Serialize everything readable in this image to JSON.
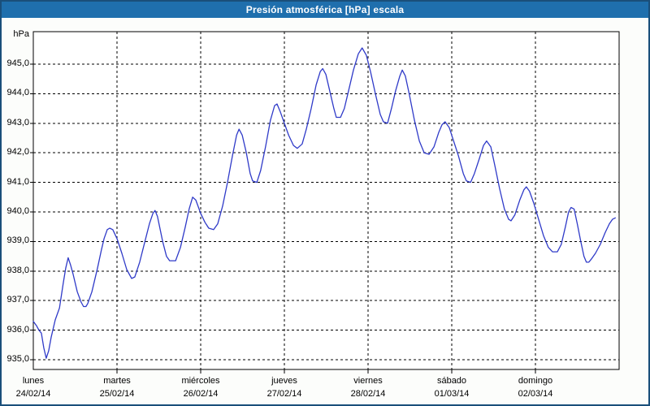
{
  "window": {
    "title": "Presión atmosférica [hPa] escala"
  },
  "colors": {
    "titlebar_bg": "#1f6fad",
    "titlebar_text": "#ffffff",
    "window_border": "#1a4f7a",
    "plot_border": "#000000",
    "grid": "#000000",
    "line": "#2f3ac8",
    "plot_background": "#ffffff"
  },
  "chart_data": {
    "type": "line",
    "title": "Presión atmosférica [hPa] escala",
    "legend_position": "none",
    "grid": "dashed",
    "y_axis": {
      "unit": "hPa",
      "min": 935.0,
      "max": 945.0,
      "tick_step": 1.0,
      "tick_labels": [
        "945,0",
        "944,0",
        "943,0",
        "942,0",
        "941,0",
        "940,0",
        "939,0",
        "938,0",
        "937,0",
        "936,0",
        "935,0"
      ],
      "tick_values": [
        945,
        944,
        943,
        942,
        941,
        940,
        939,
        938,
        937,
        936,
        935
      ]
    },
    "x_axis": {
      "hours_span": 168,
      "days": [
        {
          "name": "lunes",
          "date": "24/02/14"
        },
        {
          "name": "martes",
          "date": "25/02/14"
        },
        {
          "name": "miércoles",
          "date": "26/02/14"
        },
        {
          "name": "jueves",
          "date": "27/02/14"
        },
        {
          "name": "viernes",
          "date": "28/02/14"
        },
        {
          "name": "sábado",
          "date": "01/03/14"
        },
        {
          "name": "domingo",
          "date": "02/03/14"
        }
      ]
    },
    "series": [
      {
        "name": "presión atmosférica",
        "color": "#2f3ac8",
        "points_hours_hpa": [
          [
            0,
            936.3
          ],
          [
            0.9,
            936.15
          ],
          [
            1.6,
            936.0
          ],
          [
            2.3,
            935.9
          ],
          [
            3.0,
            935.4
          ],
          [
            3.7,
            935.05
          ],
          [
            4.4,
            935.3
          ],
          [
            5.1,
            935.75
          ],
          [
            6.3,
            936.35
          ],
          [
            7.5,
            936.75
          ],
          [
            8.6,
            937.6
          ],
          [
            9.3,
            938.1
          ],
          [
            10.0,
            938.45
          ],
          [
            10.7,
            938.2
          ],
          [
            11.4,
            937.9
          ],
          [
            12.6,
            937.3
          ],
          [
            13.7,
            936.95
          ],
          [
            14.4,
            936.8
          ],
          [
            15.1,
            936.8
          ],
          [
            15.6,
            936.9
          ],
          [
            16.8,
            937.3
          ],
          [
            18.4,
            938.1
          ],
          [
            19.5,
            938.7
          ],
          [
            20.3,
            939.1
          ],
          [
            21.2,
            939.4
          ],
          [
            21.9,
            939.45
          ],
          [
            22.8,
            939.4
          ],
          [
            24.0,
            939.1
          ],
          [
            25.4,
            938.6
          ],
          [
            26.8,
            938.05
          ],
          [
            28.2,
            937.75
          ],
          [
            29.1,
            937.8
          ],
          [
            30.5,
            938.3
          ],
          [
            31.9,
            938.95
          ],
          [
            33.3,
            939.6
          ],
          [
            34.3,
            939.95
          ],
          [
            34.9,
            940.05
          ],
          [
            35.6,
            939.85
          ],
          [
            37.1,
            939.0
          ],
          [
            38.2,
            938.5
          ],
          [
            39.1,
            938.35
          ],
          [
            40.8,
            938.35
          ],
          [
            42.2,
            938.8
          ],
          [
            43.6,
            939.5
          ],
          [
            44.7,
            940.1
          ],
          [
            45.7,
            940.5
          ],
          [
            46.6,
            940.4
          ],
          [
            48.0,
            939.95
          ],
          [
            49.2,
            939.65
          ],
          [
            50.3,
            939.45
          ],
          [
            51.7,
            939.4
          ],
          [
            52.9,
            939.6
          ],
          [
            54.3,
            940.2
          ],
          [
            55.7,
            941.0
          ],
          [
            57.1,
            941.9
          ],
          [
            58.3,
            942.6
          ],
          [
            59.0,
            942.8
          ],
          [
            59.9,
            942.6
          ],
          [
            61.1,
            942.0
          ],
          [
            62.2,
            941.3
          ],
          [
            62.9,
            941.05
          ],
          [
            64.1,
            941.0
          ],
          [
            65.2,
            941.4
          ],
          [
            66.6,
            942.2
          ],
          [
            68.0,
            943.1
          ],
          [
            69.2,
            943.6
          ],
          [
            69.9,
            943.65
          ],
          [
            70.8,
            943.4
          ],
          [
            72.0,
            943.0
          ],
          [
            73.2,
            942.6
          ],
          [
            74.6,
            942.25
          ],
          [
            75.7,
            942.15
          ],
          [
            77.1,
            942.3
          ],
          [
            78.3,
            942.8
          ],
          [
            79.7,
            943.5
          ],
          [
            81.1,
            944.3
          ],
          [
            82.3,
            944.75
          ],
          [
            83.0,
            944.85
          ],
          [
            83.9,
            944.65
          ],
          [
            85.0,
            944.1
          ],
          [
            86.2,
            943.5
          ],
          [
            86.9,
            943.2
          ],
          [
            88.1,
            943.2
          ],
          [
            89.2,
            943.5
          ],
          [
            90.4,
            944.1
          ],
          [
            91.8,
            944.8
          ],
          [
            93.2,
            945.35
          ],
          [
            94.3,
            945.55
          ],
          [
            95.5,
            945.3
          ],
          [
            96.7,
            944.75
          ],
          [
            98.1,
            944.0
          ],
          [
            99.5,
            943.3
          ],
          [
            100.4,
            943.05
          ],
          [
            101.6,
            943.0
          ],
          [
            102.7,
            943.5
          ],
          [
            103.9,
            944.1
          ],
          [
            105.1,
            944.6
          ],
          [
            105.8,
            944.8
          ],
          [
            106.7,
            944.6
          ],
          [
            107.8,
            944.0
          ],
          [
            109.3,
            943.1
          ],
          [
            110.7,
            942.4
          ],
          [
            112.1,
            942.0
          ],
          [
            113.5,
            941.95
          ],
          [
            114.9,
            942.2
          ],
          [
            116.3,
            942.7
          ],
          [
            117.2,
            942.95
          ],
          [
            118.1,
            943.05
          ],
          [
            119.3,
            942.85
          ],
          [
            120.4,
            942.45
          ],
          [
            121.9,
            941.9
          ],
          [
            123.3,
            941.3
          ],
          [
            124.2,
            941.05
          ],
          [
            125.4,
            941.0
          ],
          [
            126.5,
            941.3
          ],
          [
            127.9,
            941.8
          ],
          [
            129.1,
            942.25
          ],
          [
            130.0,
            942.4
          ],
          [
            131.2,
            942.2
          ],
          [
            132.3,
            941.6
          ],
          [
            133.7,
            940.8
          ],
          [
            135.1,
            940.1
          ],
          [
            136.3,
            939.75
          ],
          [
            137.0,
            939.7
          ],
          [
            138.1,
            939.9
          ],
          [
            139.5,
            940.4
          ],
          [
            140.7,
            940.75
          ],
          [
            141.4,
            940.85
          ],
          [
            142.3,
            940.7
          ],
          [
            143.5,
            940.3
          ],
          [
            144.9,
            939.75
          ],
          [
            146.3,
            939.2
          ],
          [
            147.7,
            938.8
          ],
          [
            148.9,
            938.65
          ],
          [
            150.3,
            938.65
          ],
          [
            151.4,
            938.9
          ],
          [
            152.6,
            939.5
          ],
          [
            153.5,
            940.0
          ],
          [
            154.2,
            940.15
          ],
          [
            155.1,
            940.1
          ],
          [
            156.0,
            939.6
          ],
          [
            157.0,
            939.0
          ],
          [
            157.9,
            938.5
          ],
          [
            158.6,
            938.3
          ],
          [
            159.3,
            938.3
          ],
          [
            160.0,
            938.4
          ],
          [
            161.2,
            938.6
          ],
          [
            162.6,
            938.9
          ],
          [
            164.0,
            939.3
          ],
          [
            165.2,
            939.6
          ],
          [
            166.1,
            939.75
          ],
          [
            166.9,
            939.8
          ]
        ]
      }
    ]
  }
}
